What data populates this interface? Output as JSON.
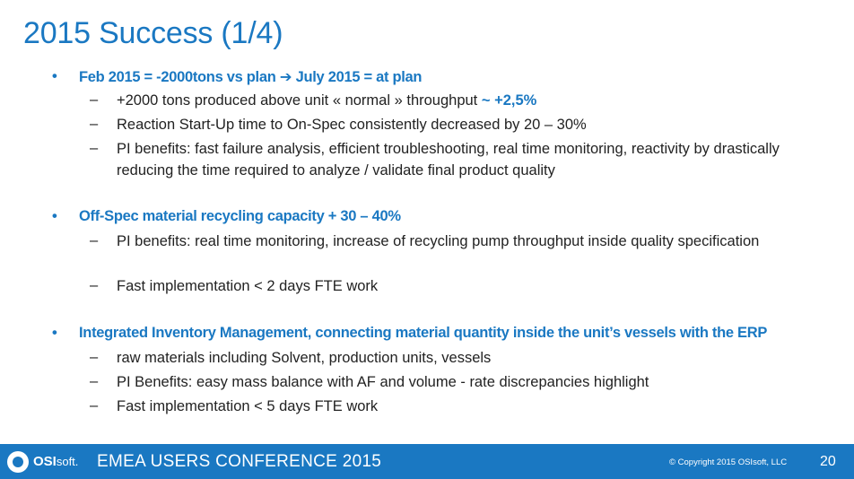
{
  "slide": {
    "title": "2015 Success (1/4)",
    "sections": [
      {
        "bullet_glyph": "•",
        "heading_parts": [
          "Feb 2015 = -2000tons vs plan ",
          "➔",
          " July 2015 = at plan"
        ],
        "items": [
          {
            "text": "+2000 tons produced above unit « normal » throughput",
            "accent": " ~ +2,5%"
          },
          {
            "text": "Reaction Start-Up time to On-Spec consistently decreased by 20 – 30%"
          },
          {
            "text": "PI benefits: fast failure analysis, efficient troubleshooting, real time monitoring, reactivity by drastically reducing the time required to analyze / validate final product quality"
          }
        ]
      },
      {
        "bullet_glyph": "•",
        "heading": "Off-Spec material recycling capacity + 30 – 40%",
        "items": [
          {
            "text": "PI benefits: real time monitoring, increase of recycling pump throughput inside quality specification"
          },
          {
            "text": "Fast implementation < 2 days FTE work"
          }
        ]
      },
      {
        "bullet_glyph": "•",
        "heading": "Integrated Inventory Management, connecting material quantity inside the unit’s vessels with the ERP",
        "items": [
          {
            "text": "raw materials including Solvent, production units, vessels"
          },
          {
            "text": "PI Benefits: easy mass balance with AF and volume - rate discrepancies highlight"
          },
          {
            "text": "Fast implementation < 5 days FTE work"
          }
        ]
      }
    ],
    "dash_glyph": "–"
  },
  "footer": {
    "logo_bold": "OSI",
    "logo_thin": "soft.",
    "conference": "EMEA USERS CONFERENCE 2015",
    "copyright": "© Copyright 2015 OSIsoft, LLC",
    "page_number": "20"
  },
  "colors": {
    "accent": "#1a78c2",
    "text": "#222222",
    "footer_bg": "#1a78c2"
  }
}
